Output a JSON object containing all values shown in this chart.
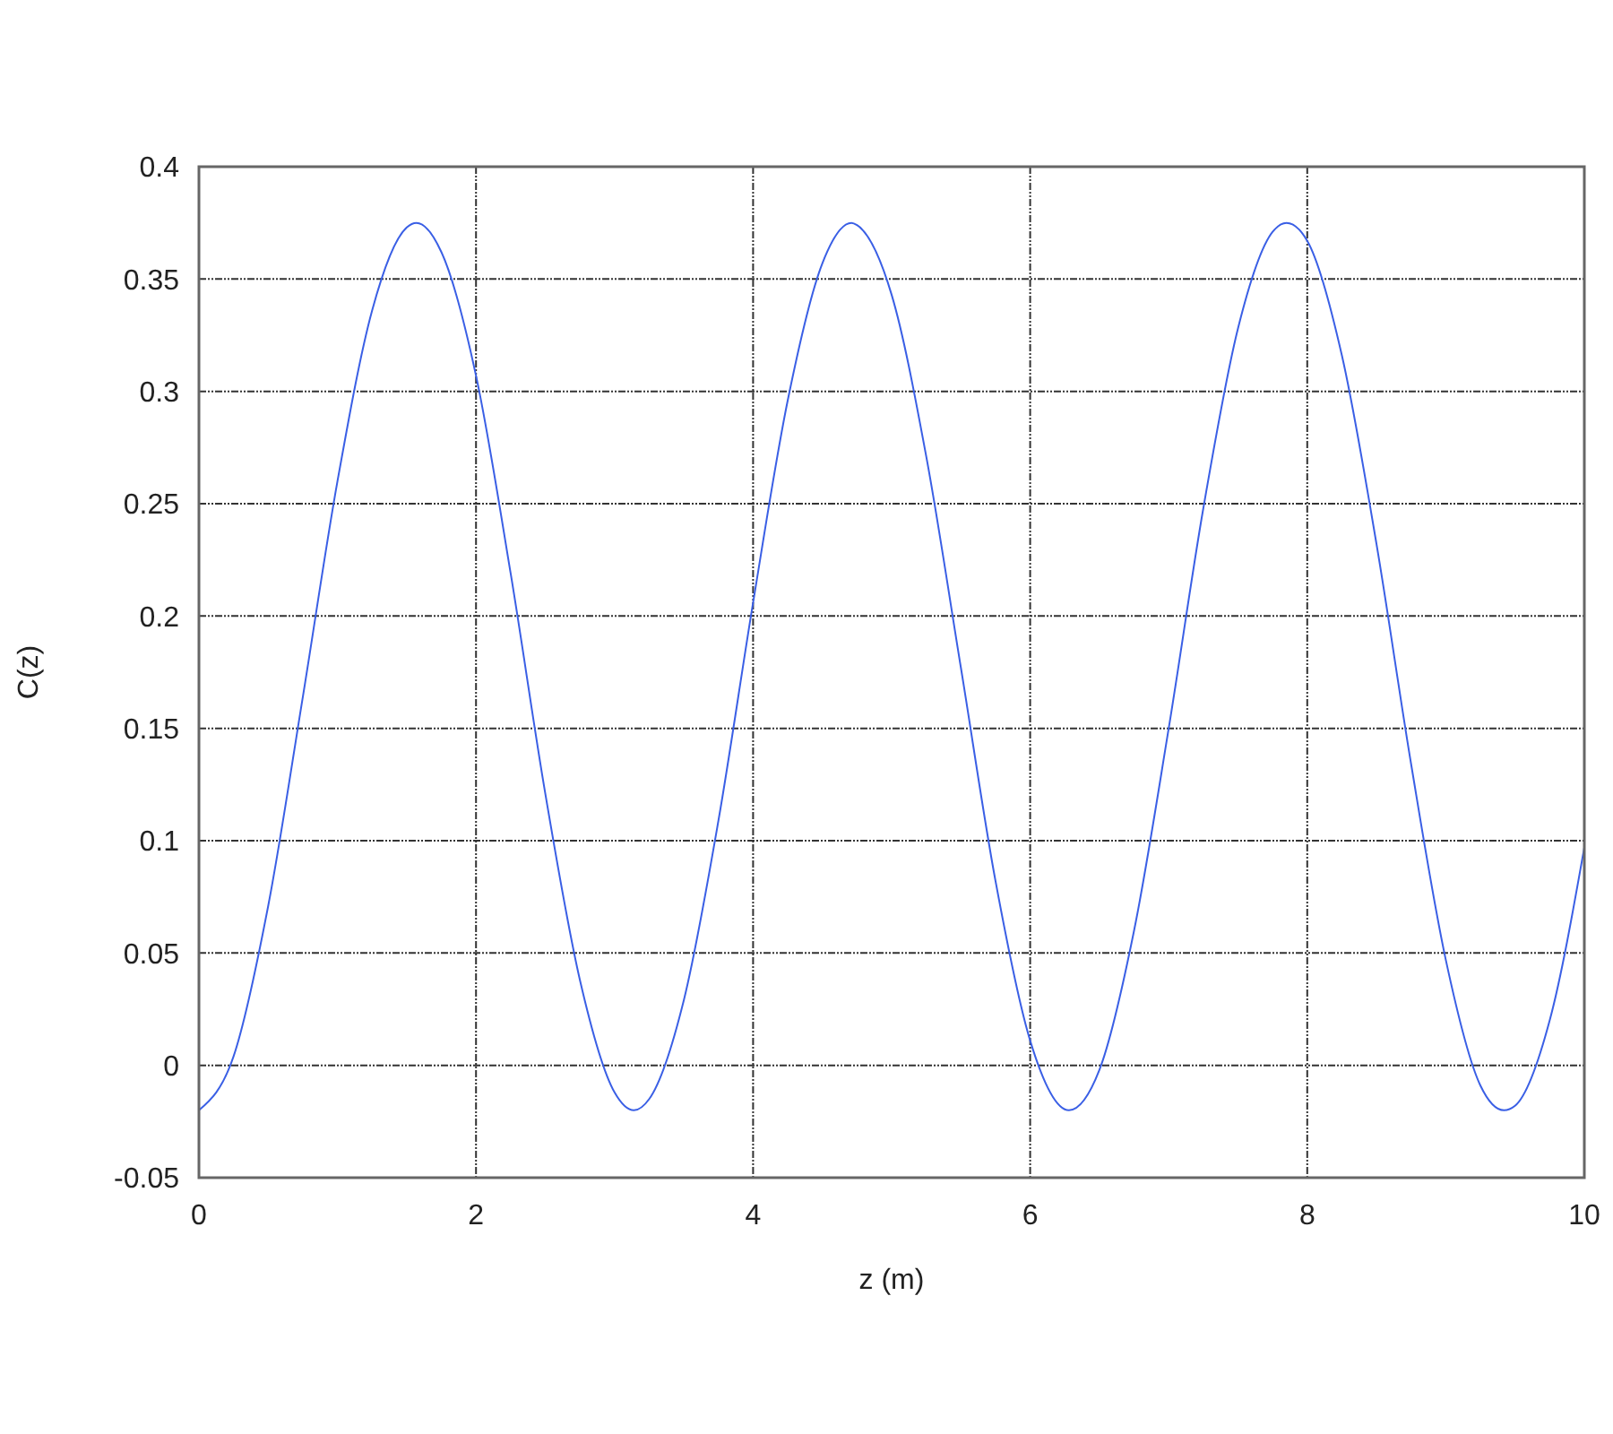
{
  "chart_data": {
    "type": "line",
    "xlabel": "z (m)",
    "ylabel": "C(z)",
    "xlim": [
      0,
      10
    ],
    "ylim": [
      -0.05,
      0.4
    ],
    "xticks": [
      0,
      2,
      4,
      6,
      8,
      10
    ],
    "yticks": [
      -0.05,
      0,
      0.05,
      0.1,
      0.15,
      0.2,
      0.25,
      0.3,
      0.35,
      0.4
    ],
    "grid": true,
    "series": [
      {
        "color": "#3a5fe5",
        "x": [
          0,
          0.25,
          0.5,
          0.75,
          1.0,
          1.25,
          1.5,
          1.57,
          1.75,
          2.0,
          2.25,
          2.5,
          2.75,
          3.0,
          3.14,
          3.25,
          3.5,
          3.75,
          4.0,
          4.25,
          4.5,
          4.71,
          4.75,
          5.0,
          5.25,
          5.5,
          5.75,
          6.0,
          6.28,
          6.5,
          6.75,
          7.0,
          7.25,
          7.5,
          7.75,
          7.85,
          8.0,
          8.25,
          8.5,
          8.75,
          9.0,
          9.25,
          9.42,
          9.5,
          9.75,
          10.0
        ],
        "values": [
          -0.02,
          0.004,
          0.071,
          0.164,
          0.26,
          0.336,
          0.373,
          0.375,
          0.362,
          0.307,
          0.219,
          0.121,
          0.038,
          -0.012,
          -0.02,
          -0.015,
          0.029,
          0.109,
          0.206,
          0.296,
          0.357,
          0.375,
          0.374,
          0.343,
          0.271,
          0.177,
          0.082,
          0.011,
          -0.02,
          -0.002,
          0.06,
          0.15,
          0.248,
          0.328,
          0.371,
          0.375,
          0.367,
          0.316,
          0.232,
          0.134,
          0.047,
          -0.009,
          -0.02,
          -0.018,
          0.02,
          0.097
        ]
      }
    ]
  }
}
